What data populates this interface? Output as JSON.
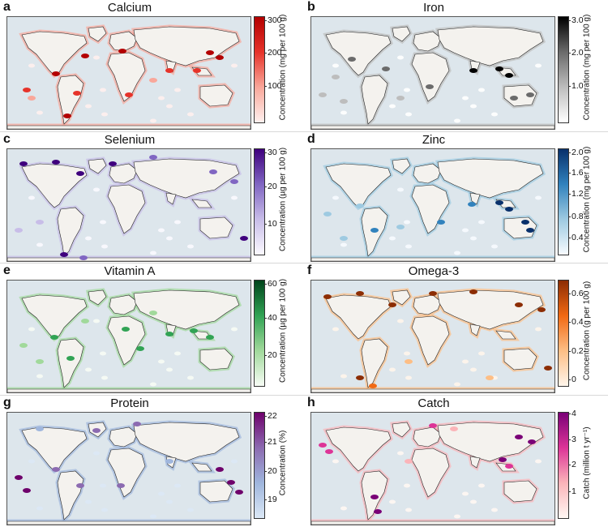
{
  "panels": [
    {
      "id": "a",
      "title": "Calcium",
      "unit": "Concentration (mg per 100 g)",
      "ticks": [
        "300",
        "200",
        "100"
      ],
      "tick_pos": [
        0.02,
        0.34,
        0.67
      ],
      "colors": [
        "#fff0ee",
        "#f9a79a",
        "#e6332a",
        "#b30000"
      ]
    },
    {
      "id": "b",
      "title": "Iron",
      "unit": "Concentration (mg per 100 g)",
      "ticks": [
        "3.0",
        "2.0",
        "1.0"
      ],
      "tick_pos": [
        0.02,
        0.34,
        0.67
      ],
      "colors": [
        "#ffffff",
        "#bdbdbd",
        "#6b6b6b",
        "#000000"
      ]
    },
    {
      "id": "c",
      "title": "Selenium",
      "unit": "Concentration (µg per 100 g)",
      "ticks": [
        "30",
        "20",
        "10"
      ],
      "tick_pos": [
        0.02,
        0.36,
        0.72
      ],
      "colors": [
        "#fbf9ff",
        "#c8bde8",
        "#8066c2",
        "#3f007d"
      ]
    },
    {
      "id": "d",
      "title": "Zinc",
      "unit": "Concentration (mg per 100 g)",
      "ticks": [
        "2.0",
        "1.6",
        "1.2",
        "0.8",
        "0.4"
      ],
      "tick_pos": [
        0.02,
        0.22,
        0.43,
        0.65,
        0.86
      ],
      "colors": [
        "#f7fbff",
        "#9ecae1",
        "#3182bd",
        "#08306b"
      ]
    },
    {
      "id": "e",
      "title": "Vitamin A",
      "unit": "Concentration (µg per 100 g)",
      "ticks": [
        "60",
        "40",
        "20"
      ],
      "tick_pos": [
        0.02,
        0.36,
        0.72
      ],
      "colors": [
        "#f7fcf5",
        "#a1d99b",
        "#31a354",
        "#00441b"
      ]
    },
    {
      "id": "f",
      "title": "Omega-3",
      "unit": "Concentration (g per 100 g)",
      "ticks": [
        "0.6",
        "0.4",
        "0.2",
        "0"
      ],
      "tick_pos": [
        0.12,
        0.4,
        0.68,
        0.96
      ],
      "colors": [
        "#fff5eb",
        "#fdbe85",
        "#f16913",
        "#8c2d04"
      ]
    },
    {
      "id": "g",
      "title": "Protein",
      "unit": "Concentration (%)",
      "ticks": [
        "22",
        "21",
        "20",
        "19"
      ],
      "tick_pos": [
        0.02,
        0.28,
        0.56,
        0.84
      ],
      "colors": [
        "#dbe8f6",
        "#9fb6dd",
        "#8c6bb1",
        "#6e016b"
      ]
    },
    {
      "id": "h",
      "title": "Catch",
      "unit": "Catch (million t yr⁻¹)",
      "ticks": [
        "4",
        "3",
        "2",
        "1"
      ],
      "tick_pos": [
        0.0,
        0.25,
        0.5,
        0.76
      ],
      "colors": [
        "#fff7f3",
        "#fbb4b9",
        "#dd3497",
        "#7a0177"
      ]
    }
  ]
}
